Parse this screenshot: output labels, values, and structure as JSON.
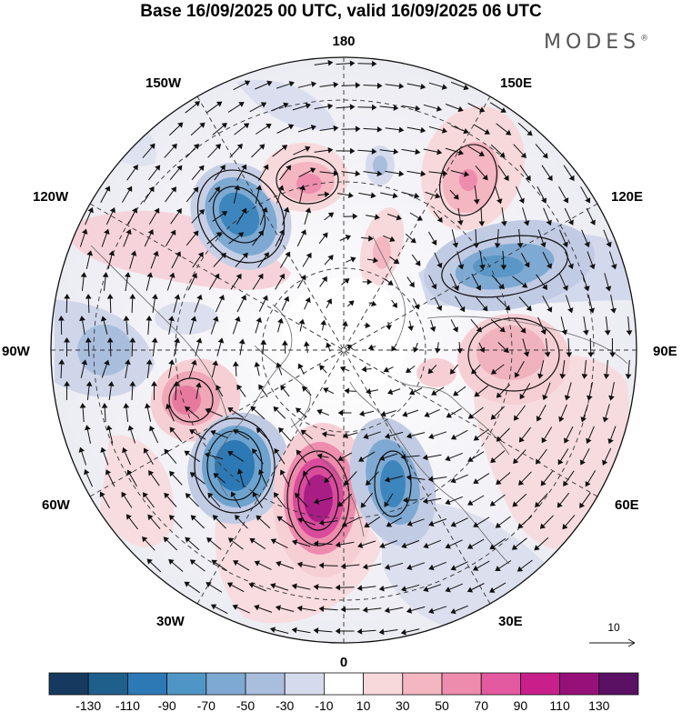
{
  "title": "Base 16/09/2025 00 UTC, valid 16/09/2025 06 UTC",
  "brand": "MODES",
  "brand_mark": "®",
  "lon_labels": {
    "top": "180",
    "bottom": "0",
    "left": "90W",
    "right": "90E",
    "upper_left_outer": "150W",
    "upper_left_inner": "120W",
    "upper_right_outer": "150E",
    "upper_right_inner": "120E",
    "lower_left_outer": "60W",
    "lower_left_inner": "30W",
    "lower_right_outer": "60E",
    "lower_right_inner": "30E"
  },
  "wind_reference": "10",
  "colorbar": {
    "labels": [
      "-130",
      "-110",
      "-90",
      "-70",
      "-50",
      "-30",
      "-10",
      "10",
      "30",
      "50",
      "70",
      "90",
      "110",
      "130"
    ],
    "colors": [
      "#163a5f",
      "#1f5f8b",
      "#2d79b5",
      "#4f96c6",
      "#7ea9d2",
      "#a9bedd",
      "#d5dbed",
      "#ffffff",
      "#f8d9db",
      "#f4b6c0",
      "#ee8cae",
      "#e45aa0",
      "#c91f8b",
      "#96107a",
      "#5a1063"
    ]
  },
  "anomaly_centers": [
    {
      "sign": "neg",
      "value": -90,
      "label": "120W"
    },
    {
      "sign": "pos",
      "value": 70,
      "label": "150W"
    },
    {
      "sign": "pos",
      "value": 70,
      "label": "150E"
    },
    {
      "sign": "neg",
      "value": -70,
      "label": "120E"
    },
    {
      "sign": "pos",
      "value": 50,
      "label": "90E"
    },
    {
      "sign": "pos",
      "value": 70,
      "label": "90W"
    },
    {
      "sign": "neg",
      "value": -90,
      "label": "60W"
    },
    {
      "sign": "pos",
      "value": 130,
      "label": "0"
    },
    {
      "sign": "neg",
      "value": -90,
      "label": "30E"
    }
  ]
}
